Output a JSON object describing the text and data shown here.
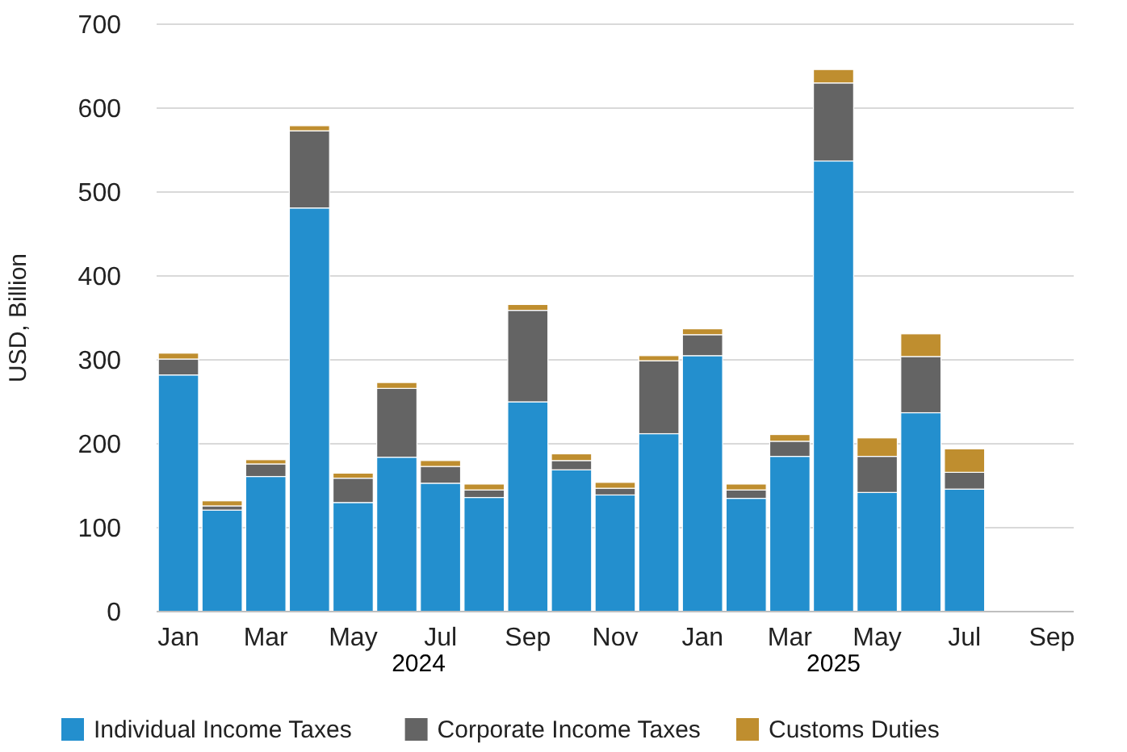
{
  "chart_data": {
    "type": "bar",
    "stacked": true,
    "ylabel": "USD, Billion",
    "categories": [
      "Jan",
      null,
      "Mar",
      null,
      "May",
      null,
      "Jul",
      null,
      "Sep",
      null,
      "Nov",
      null,
      "Jan",
      null,
      "Mar",
      null,
      "May",
      null,
      "Jul",
      null,
      "Sep"
    ],
    "series": [
      {
        "name": "Individual Income Taxes",
        "color": "#238fce",
        "values": [
          282,
          121,
          161,
          481,
          130,
          184,
          153,
          136,
          250,
          169,
          139,
          212,
          305,
          135,
          185,
          537,
          142,
          237,
          146,
          null,
          null
        ]
      },
      {
        "name": "Corporate Income Taxes",
        "color": "#646464",
        "values": [
          19,
          5,
          15,
          92,
          29,
          82,
          20,
          9,
          109,
          11,
          8,
          87,
          25,
          10,
          18,
          93,
          43,
          67,
          20,
          null,
          null
        ]
      },
      {
        "name": "Customs Duties",
        "color": "#bf8e2f",
        "values": [
          7,
          6,
          5,
          6,
          6,
          7,
          7,
          7,
          7,
          8,
          7,
          6,
          7,
          7,
          8,
          16,
          22,
          27,
          28,
          null,
          null
        ]
      }
    ],
    "ylim": [
      0,
      700
    ],
    "yticks": [
      0,
      100,
      200,
      300,
      400,
      500,
      600,
      700
    ],
    "grid": "y",
    "legend": "bottom",
    "annotations": [
      "2024",
      "2025"
    ]
  }
}
